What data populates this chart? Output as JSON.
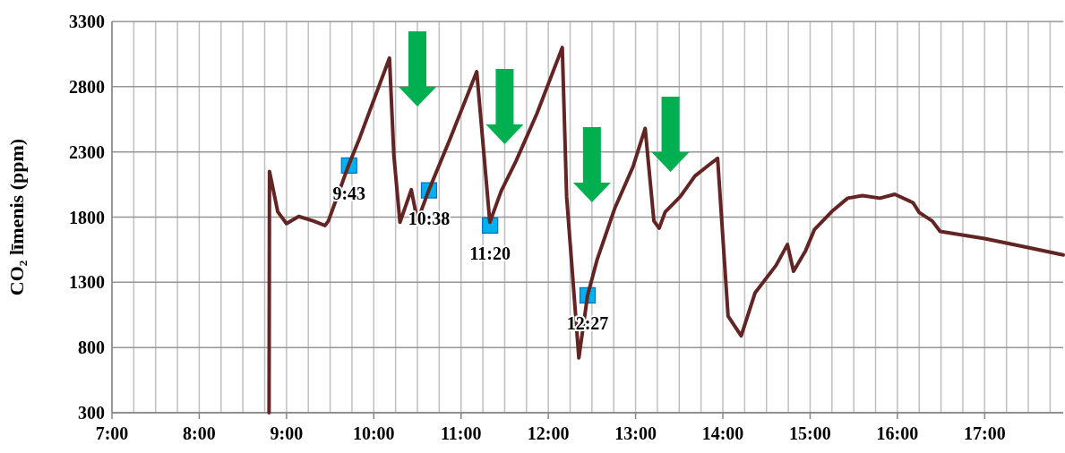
{
  "chart_data": {
    "type": "line",
    "ylabel": "CO₂ līmenis (ppm)",
    "xlim": [
      7,
      17.9
    ],
    "ylim": [
      300,
      3300
    ],
    "xticks": [
      {
        "value": 7,
        "label": "7:00"
      },
      {
        "value": 7.25,
        "label": null
      },
      {
        "value": 7.5,
        "label": null
      },
      {
        "value": 7.75,
        "label": null
      },
      {
        "value": 8,
        "label": "8:00"
      },
      {
        "value": 8.25,
        "label": null
      },
      {
        "value": 8.5,
        "label": null
      },
      {
        "value": 8.75,
        "label": null
      },
      {
        "value": 9,
        "label": "9:00"
      },
      {
        "value": 9.25,
        "label": null
      },
      {
        "value": 9.5,
        "label": null
      },
      {
        "value": 9.75,
        "label": null
      },
      {
        "value": 10,
        "label": "10:00"
      },
      {
        "value": 10.25,
        "label": null
      },
      {
        "value": 10.5,
        "label": null
      },
      {
        "value": 10.75,
        "label": null
      },
      {
        "value": 11,
        "label": "11:00"
      },
      {
        "value": 11.25,
        "label": null
      },
      {
        "value": 11.5,
        "label": null
      },
      {
        "value": 11.75,
        "label": null
      },
      {
        "value": 12,
        "label": "12:00"
      },
      {
        "value": 12.25,
        "label": null
      },
      {
        "value": 12.5,
        "label": null
      },
      {
        "value": 12.75,
        "label": null
      },
      {
        "value": 13,
        "label": "13:00"
      },
      {
        "value": 13.25,
        "label": null
      },
      {
        "value": 13.5,
        "label": null
      },
      {
        "value": 13.75,
        "label": null
      },
      {
        "value": 14,
        "label": "14:00"
      },
      {
        "value": 14.25,
        "label": null
      },
      {
        "value": 14.5,
        "label": null
      },
      {
        "value": 14.75,
        "label": null
      },
      {
        "value": 15,
        "label": "15:00"
      },
      {
        "value": 15.25,
        "label": null
      },
      {
        "value": 15.5,
        "label": null
      },
      {
        "value": 15.75,
        "label": null
      },
      {
        "value": 16,
        "label": "16:00"
      },
      {
        "value": 16.25,
        "label": null
      },
      {
        "value": 16.5,
        "label": null
      },
      {
        "value": 16.75,
        "label": null
      },
      {
        "value": 17,
        "label": "17:00"
      },
      {
        "value": 17.25,
        "label": null
      },
      {
        "value": 17.5,
        "label": null
      },
      {
        "value": 17.75,
        "label": null
      }
    ],
    "yticks": [
      300,
      800,
      1300,
      1800,
      2300,
      2800,
      3300
    ],
    "grid": true,
    "series": [
      {
        "color": "#632523",
        "marker": "none",
        "x": [
          8.8,
          8.805,
          8.9,
          9.0,
          9.14,
          9.31,
          9.44,
          9.48,
          9.71,
          9.84,
          10.18,
          10.23,
          10.3,
          10.43,
          10.5,
          10.63,
          10.88,
          11.18,
          11.33,
          11.46,
          11.63,
          11.87,
          12.16,
          12.21,
          12.35,
          12.45,
          12.56,
          12.76,
          12.97,
          13.11,
          13.21,
          13.27,
          13.34,
          13.51,
          13.68,
          13.85,
          13.94,
          14.06,
          14.21,
          14.37,
          14.61,
          14.74,
          14.81,
          14.95,
          15.05,
          15.26,
          15.43,
          15.6,
          15.8,
          15.97,
          16.18,
          16.25,
          16.4,
          16.49,
          17.0,
          17.51,
          17.9
        ],
        "values": [
          300,
          2150,
          1840,
          1750,
          1805,
          1770,
          1735,
          1770,
          2195,
          2410,
          3020,
          2275,
          1760,
          2010,
          1770,
          2005,
          2410,
          2915,
          1760,
          2000,
          2230,
          2595,
          3100,
          1955,
          720,
          1200,
          1475,
          1865,
          2185,
          2480,
          1770,
          1715,
          1840,
          1955,
          2115,
          2205,
          2250,
          1040,
          890,
          1220,
          1430,
          1590,
          1385,
          1545,
          1705,
          1850,
          1945,
          1965,
          1945,
          1975,
          1910,
          1835,
          1770,
          1690,
          1635,
          1565,
          1510
        ]
      },
      {
        "type": "scatter",
        "color": "#00b0f0",
        "marker": "square",
        "x": [
          9.717,
          10.633,
          11.333,
          12.45
        ],
        "values": [
          2195,
          2005,
          1735,
          1200
        ]
      }
    ],
    "annotations": [
      {
        "text": "9:43",
        "x": 9.717,
        "y": 2195
      },
      {
        "text": "10:38",
        "x": 10.633,
        "y": 2005
      },
      {
        "text": "11:20",
        "x": 11.333,
        "y": 1735
      },
      {
        "text": "12:27",
        "x": 12.45,
        "y": 1200
      }
    ]
  }
}
